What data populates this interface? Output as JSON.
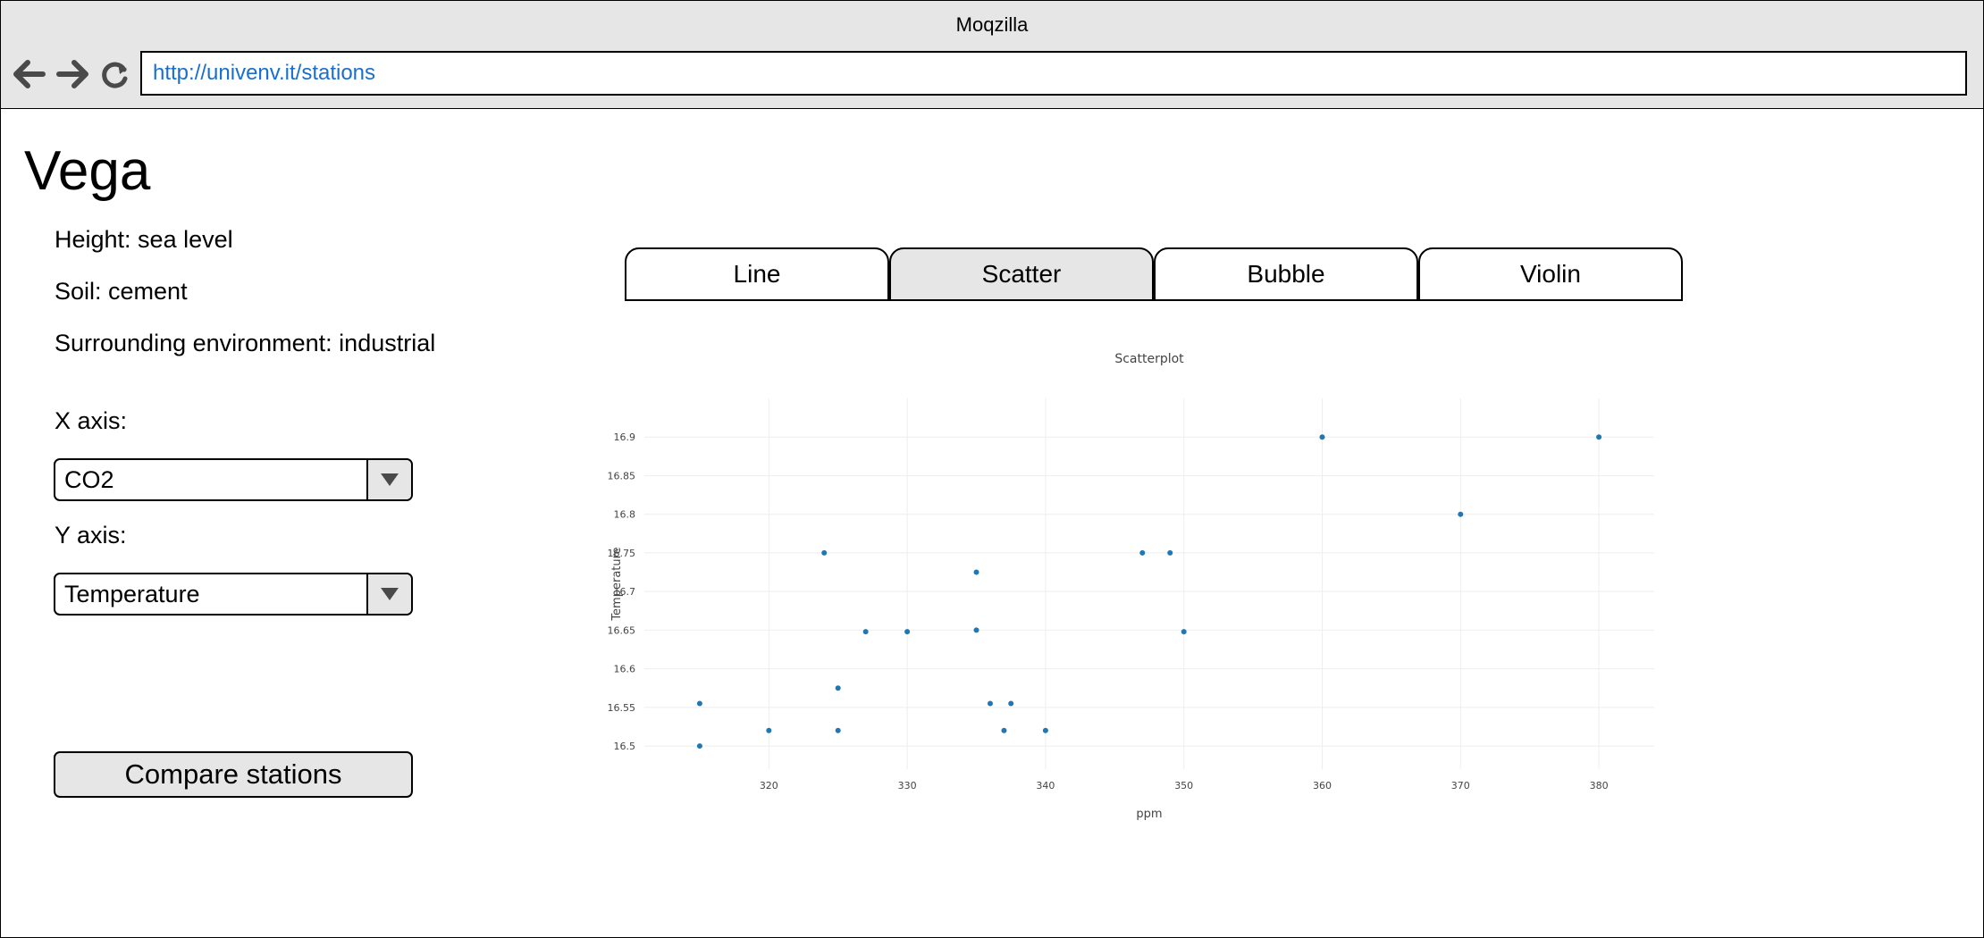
{
  "window": {
    "title": "Moqzilla"
  },
  "nav": {
    "back_icon": "arrow-left-icon",
    "forward_icon": "arrow-right-icon",
    "reload_icon": "reload-icon",
    "url": "http://univenv.it/stations"
  },
  "station": {
    "name": "Vega",
    "height": "Height: sea level",
    "soil": "Soil: cement",
    "environment": "Surrounding environment: industrial"
  },
  "controls": {
    "x_axis_label": "X axis:",
    "x_axis_value": "CO2",
    "y_axis_label": "Y axis:",
    "y_axis_value": "Temperature",
    "compare_label": "Compare stations"
  },
  "tabs": [
    {
      "label": "Line",
      "active": false
    },
    {
      "label": "Scatter",
      "active": true
    },
    {
      "label": "Bubble",
      "active": false
    },
    {
      "label": "Violin",
      "active": false
    }
  ],
  "colors": {
    "accent": "#1f77b4",
    "chrome": "#e6e6e6",
    "link": "#1a6fce"
  },
  "chart_data": {
    "type": "scatter",
    "title": "Scatterplot",
    "xlabel": "ppm",
    "ylabel": "Temperature",
    "xlim": [
      311,
      384
    ],
    "ylim": [
      16.47,
      16.95
    ],
    "xticks": [
      320,
      330,
      340,
      350,
      360,
      370,
      380
    ],
    "yticks": [
      16.5,
      16.55,
      16.6,
      16.65,
      16.7,
      16.75,
      16.8,
      16.85,
      16.9
    ],
    "ytick_labels": [
      "16.5",
      "16.55",
      "16.6",
      "16.65",
      "16.7",
      "16.75",
      "16.8",
      "16.85",
      "16.9"
    ],
    "grid": true,
    "series": [
      {
        "x": [
          315,
          315,
          320,
          324,
          325,
          325,
          327,
          330,
          335,
          335,
          336,
          337,
          337.5,
          340,
          347,
          349,
          350,
          360,
          370,
          380
        ],
        "y": [
          16.555,
          16.5,
          16.52,
          16.75,
          16.575,
          16.52,
          16.648,
          16.648,
          16.725,
          16.65,
          16.555,
          16.52,
          16.555,
          16.52,
          16.75,
          16.75,
          16.648,
          16.9,
          16.8,
          16.9
        ]
      }
    ]
  }
}
